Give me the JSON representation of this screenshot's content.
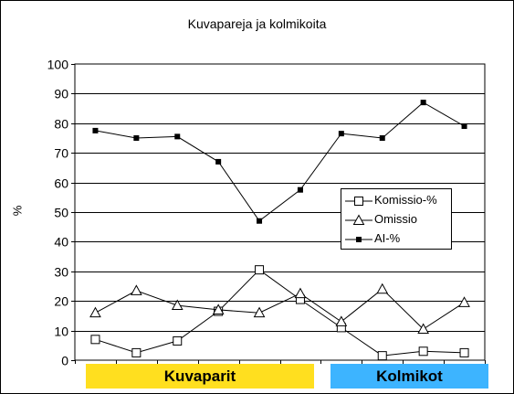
{
  "chart_data": {
    "type": "line",
    "title": "Kuvapareja ja kolmikoita",
    "ylabel": "%",
    "xlabel": "",
    "ylim": [
      0,
      100
    ],
    "yticks": [
      0,
      10,
      20,
      30,
      40,
      50,
      60,
      70,
      80,
      90,
      100
    ],
    "grid": true,
    "legend_position": "center-right",
    "x": [
      1,
      2,
      3,
      4,
      5,
      6,
      7,
      8,
      9,
      10
    ],
    "series": [
      {
        "name": "Komissio-%",
        "marker": "open-square",
        "values": [
          7,
          2.5,
          6.5,
          16.5,
          30.5,
          20.5,
          11,
          1.5,
          3,
          2.5
        ]
      },
      {
        "name": "Omissio",
        "marker": "open-triangle",
        "values": [
          16,
          23.5,
          18.5,
          17,
          16,
          22.5,
          13,
          24,
          10.5,
          19.5
        ]
      },
      {
        "name": "AI-%",
        "marker": "filled-square",
        "values": [
          77.5,
          75,
          75.5,
          67,
          47,
          57.5,
          76.5,
          75,
          87,
          79
        ]
      }
    ],
    "groups": [
      {
        "label": "Kuvaparit",
        "color": "#FFDF1F"
      },
      {
        "label": "Kolmikot",
        "color": "#3DB4FF"
      }
    ]
  }
}
